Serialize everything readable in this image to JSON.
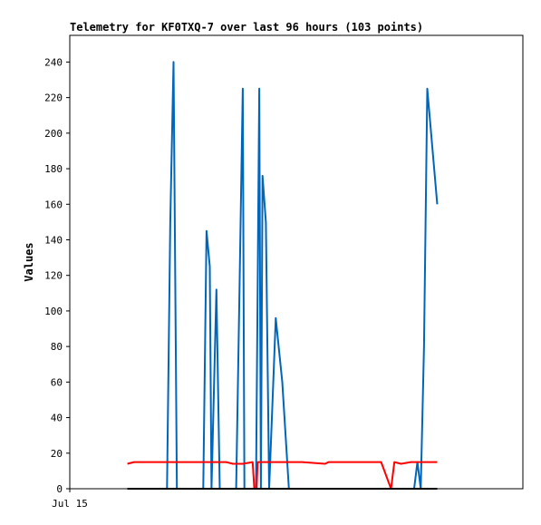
{
  "chart_data": {
    "type": "line",
    "title": "Telemetry for KF0TXQ-7 over last 96 hours (103 points)",
    "xlabel": "",
    "ylabel": "Values",
    "ylim": [
      0,
      255
    ],
    "x_tick_labels": [
      "Jul 15"
    ],
    "y_ticks": [
      0,
      20,
      40,
      60,
      80,
      100,
      120,
      140,
      160,
      180,
      200,
      220,
      240
    ],
    "grid": false,
    "legend": "none",
    "colors": {
      "blue": "#0066bb",
      "red": "#ff0000",
      "black": "#000000"
    },
    "series": [
      {
        "color": "#0066bb",
        "points": [
          [
            0,
            0
          ],
          [
            12,
            0
          ],
          [
            13,
            150
          ],
          [
            14,
            240
          ],
          [
            15,
            0
          ],
          [
            23,
            0
          ],
          [
            24,
            145
          ],
          [
            25,
            125
          ],
          [
            25.5,
            0
          ],
          [
            27,
            112
          ],
          [
            28,
            0
          ],
          [
            33,
            0
          ],
          [
            34,
            112
          ],
          [
            35,
            225
          ],
          [
            35.5,
            0
          ],
          [
            39,
            0
          ],
          [
            40,
            225
          ],
          [
            40.5,
            0
          ],
          [
            41,
            176
          ],
          [
            42,
            150
          ],
          [
            43,
            0
          ],
          [
            45,
            96
          ],
          [
            47,
            60
          ],
          [
            49,
            0
          ],
          [
            87,
            0
          ],
          [
            88,
            15
          ],
          [
            89,
            0
          ],
          [
            90,
            80
          ],
          [
            91,
            225
          ],
          [
            94,
            160
          ]
        ]
      },
      {
        "color": "#ff0000",
        "points": [
          [
            0,
            14
          ],
          [
            2,
            15
          ],
          [
            10,
            15
          ],
          [
            20,
            15
          ],
          [
            30,
            15
          ],
          [
            32,
            14
          ],
          [
            35,
            14
          ],
          [
            38,
            15
          ],
          [
            38.5,
            0
          ],
          [
            39.2,
            0
          ],
          [
            39.5,
            15
          ],
          [
            46,
            15
          ],
          [
            53,
            15
          ],
          [
            60,
            14
          ],
          [
            61,
            15
          ],
          [
            75,
            15
          ],
          [
            77,
            15
          ],
          [
            80,
            0
          ],
          [
            81,
            15
          ],
          [
            83,
            14
          ],
          [
            86,
            15
          ],
          [
            94,
            15
          ]
        ]
      },
      {
        "color": "#000000",
        "points": [
          [
            0,
            0
          ],
          [
            94,
            0
          ]
        ]
      }
    ]
  }
}
